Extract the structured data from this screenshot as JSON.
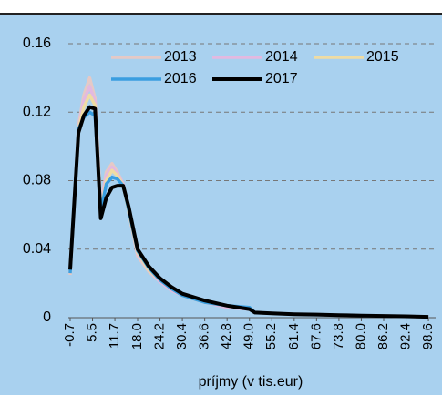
{
  "chart_data": {
    "type": "line",
    "x_label": "príjmy (v tis.eur)",
    "x": [
      -0.7,
      1.6,
      3.1,
      4.7,
      6.2,
      7.8,
      9.3,
      10.9,
      12.4,
      14.0,
      15.5,
      18.0,
      21.1,
      24.2,
      27.3,
      30.4,
      36.6,
      42.8,
      49.0,
      50.5,
      55.2,
      61.4,
      67.6,
      73.8,
      80.0,
      86.2,
      92.4,
      98.6
    ],
    "series": [
      {
        "name": "2013",
        "color": "#e5c9c6",
        "values": [
          0.025,
          0.112,
          0.13,
          0.14,
          0.128,
          0.065,
          0.085,
          0.09,
          0.085,
          0.078,
          0.062,
          0.036,
          0.027,
          0.021,
          0.016,
          0.013,
          0.009,
          0.006,
          0.005,
          0.003,
          0.0025,
          0.002,
          0.0018,
          0.0015,
          0.0012,
          0.001,
          0.0008,
          0.0005
        ]
      },
      {
        "name": "2014",
        "color": "#e3b9e0",
        "values": [
          0.026,
          0.11,
          0.127,
          0.135,
          0.126,
          0.064,
          0.083,
          0.088,
          0.084,
          0.078,
          0.062,
          0.037,
          0.028,
          0.021,
          0.016,
          0.013,
          0.009,
          0.006,
          0.005,
          0.003,
          0.0025,
          0.002,
          0.0018,
          0.0015,
          0.0012,
          0.001,
          0.0008,
          0.0005
        ]
      },
      {
        "name": "2015",
        "color": "#efdca3",
        "values": [
          0.026,
          0.11,
          0.123,
          0.13,
          0.124,
          0.063,
          0.08,
          0.086,
          0.083,
          0.077,
          0.062,
          0.038,
          0.028,
          0.022,
          0.017,
          0.013,
          0.009,
          0.007,
          0.005,
          0.003,
          0.0025,
          0.002,
          0.0018,
          0.0015,
          0.0012,
          0.001,
          0.0008,
          0.0005
        ]
      },
      {
        "name": "2016",
        "color": "#3a9ee0",
        "values": [
          0.026,
          0.11,
          0.117,
          0.12,
          0.118,
          0.062,
          0.078,
          0.082,
          0.081,
          0.077,
          0.063,
          0.039,
          0.029,
          0.022,
          0.017,
          0.013,
          0.009,
          0.007,
          0.006,
          0.003,
          0.0025,
          0.002,
          0.0018,
          0.0015,
          0.0012,
          0.001,
          0.0008,
          0.0005
        ]
      },
      {
        "name": "2017",
        "color": "#000000",
        "values": [
          0.028,
          0.108,
          0.118,
          0.123,
          0.122,
          0.058,
          0.07,
          0.076,
          0.077,
          0.077,
          0.065,
          0.04,
          0.03,
          0.023,
          0.018,
          0.014,
          0.01,
          0.007,
          0.005,
          0.003,
          0.0025,
          0.002,
          0.0018,
          0.0015,
          0.0012,
          0.001,
          0.0008,
          0.0005
        ]
      }
    ],
    "xlim": [
      -1.2,
      100.6
    ],
    "xticks": [
      -0.7,
      5.5,
      11.7,
      {
        "value": 18,
        "label": "18.0"
      },
      24.2,
      30.4,
      36.6,
      42.8,
      {
        "value": 49,
        "label": "49.0"
      },
      55.2,
      61.4,
      67.6,
      73.8,
      {
        "value": 80,
        "label": "80.0"
      },
      86.2,
      92.4,
      98.6
    ],
    "ylim": [
      0,
      0.16
    ],
    "yticks": [
      0,
      0.04,
      0.08,
      0.12,
      0.16
    ],
    "grid": true,
    "legend": "top-right"
  }
}
